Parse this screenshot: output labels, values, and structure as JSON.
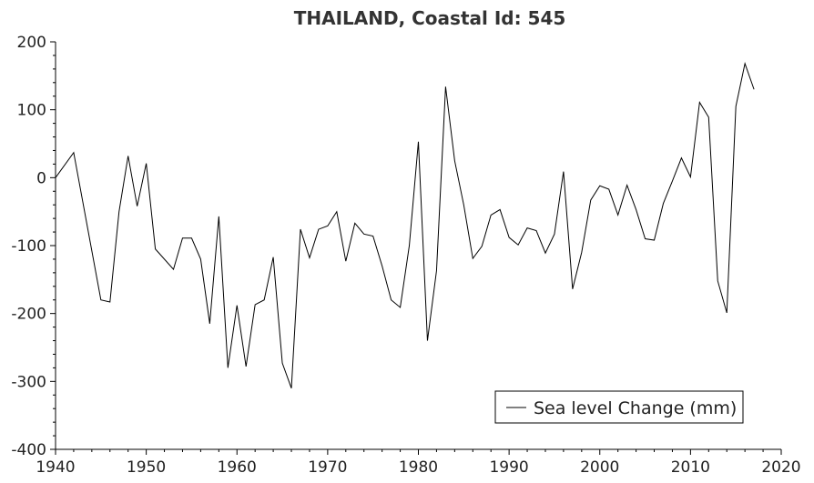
{
  "chart_data": {
    "type": "line",
    "title": "THAILAND, Coastal Id: 545",
    "xlabel": "",
    "ylabel": "",
    "xlim": [
      1940,
      2020
    ],
    "ylim": [
      -400,
      200
    ],
    "xticks": [
      1940,
      1950,
      1960,
      1970,
      1980,
      1990,
      2000,
      2010,
      2020
    ],
    "yticks": [
      200,
      100,
      0,
      -100,
      -200,
      -300,
      -400
    ],
    "grid": false,
    "legend": {
      "position": "bottom-right"
    },
    "series": [
      {
        "name": "Sea level Change (mm)",
        "color": "#000000",
        "x": [
          1940,
          1942,
          1945,
          1946,
          1947,
          1948,
          1949,
          1950,
          1951,
          1953,
          1954,
          1955,
          1956,
          1957,
          1958,
          1959,
          1960,
          1961,
          1962,
          1963,
          1964,
          1965,
          1966,
          1967,
          1968,
          1969,
          1970,
          1971,
          1972,
          1973,
          1974,
          1975,
          1976,
          1977,
          1978,
          1979,
          1980,
          1981,
          1982,
          1983,
          1984,
          1985,
          1986,
          1987,
          1988,
          1989,
          1990,
          1991,
          1992,
          1993,
          1994,
          1995,
          1996,
          1997,
          1998,
          1999,
          2000,
          2001,
          2002,
          2003,
          2004,
          2005,
          2006,
          2007,
          2008,
          2009,
          2010,
          2011,
          2012,
          2013,
          2014,
          2015,
          2016,
          2017
        ],
        "y": [
          0,
          37,
          -180,
          -183,
          -50,
          32,
          -42,
          21,
          -105,
          -135,
          -89,
          -89,
          -120,
          -215,
          -57,
          -280,
          -188,
          -278,
          -187,
          -180,
          -117,
          -273,
          -310,
          -76,
          -118,
          -76,
          -71,
          -50,
          -123,
          -67,
          -83,
          -86,
          -130,
          -180,
          -191,
          -100,
          53,
          -240,
          -137,
          134,
          25,
          -40,
          -119,
          -101,
          -55,
          -47,
          -88,
          -99,
          -74,
          -78,
          -111,
          -83,
          9,
          -164,
          -110,
          -33,
          -12,
          -17,
          -55,
          -11,
          -47,
          -90,
          -92,
          -38,
          -5,
          29,
          1,
          111,
          89,
          -152,
          -199,
          105,
          168,
          130
        ]
      }
    ]
  }
}
